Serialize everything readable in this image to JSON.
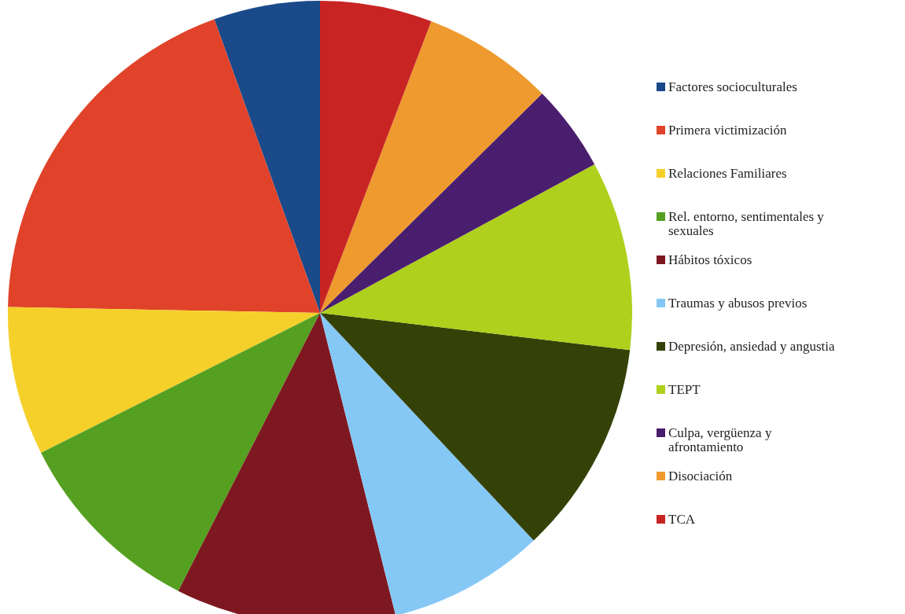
{
  "chart_data": {
    "type": "pie",
    "legend": "right",
    "categories": [
      "Factores socioculturales",
      "Primera victimización",
      "Relaciones Familiares",
      "Rel. entorno, sentimentales y sexuales",
      "Hábitos tóxicos",
      "Traumas y abusos previos",
      "Depresión, ansiedad y angustia",
      "TEPT",
      "Culpa, vergüenza y afrontamiento",
      "Disociación",
      "TCA"
    ],
    "values": [
      5.5,
      19.2,
      7.7,
      10.1,
      11.4,
      8.1,
      11.1,
      9.8,
      4.5,
      6.8,
      5.8
    ],
    "colors": [
      "#1a4a8a",
      "#e0432a",
      "#f5d02a",
      "#55a020",
      "#7e1820",
      "#86c8f5",
      "#344208",
      "#afd01c",
      "#4a1e6e",
      "#ee9a2e",
      "#c82424"
    ]
  }
}
